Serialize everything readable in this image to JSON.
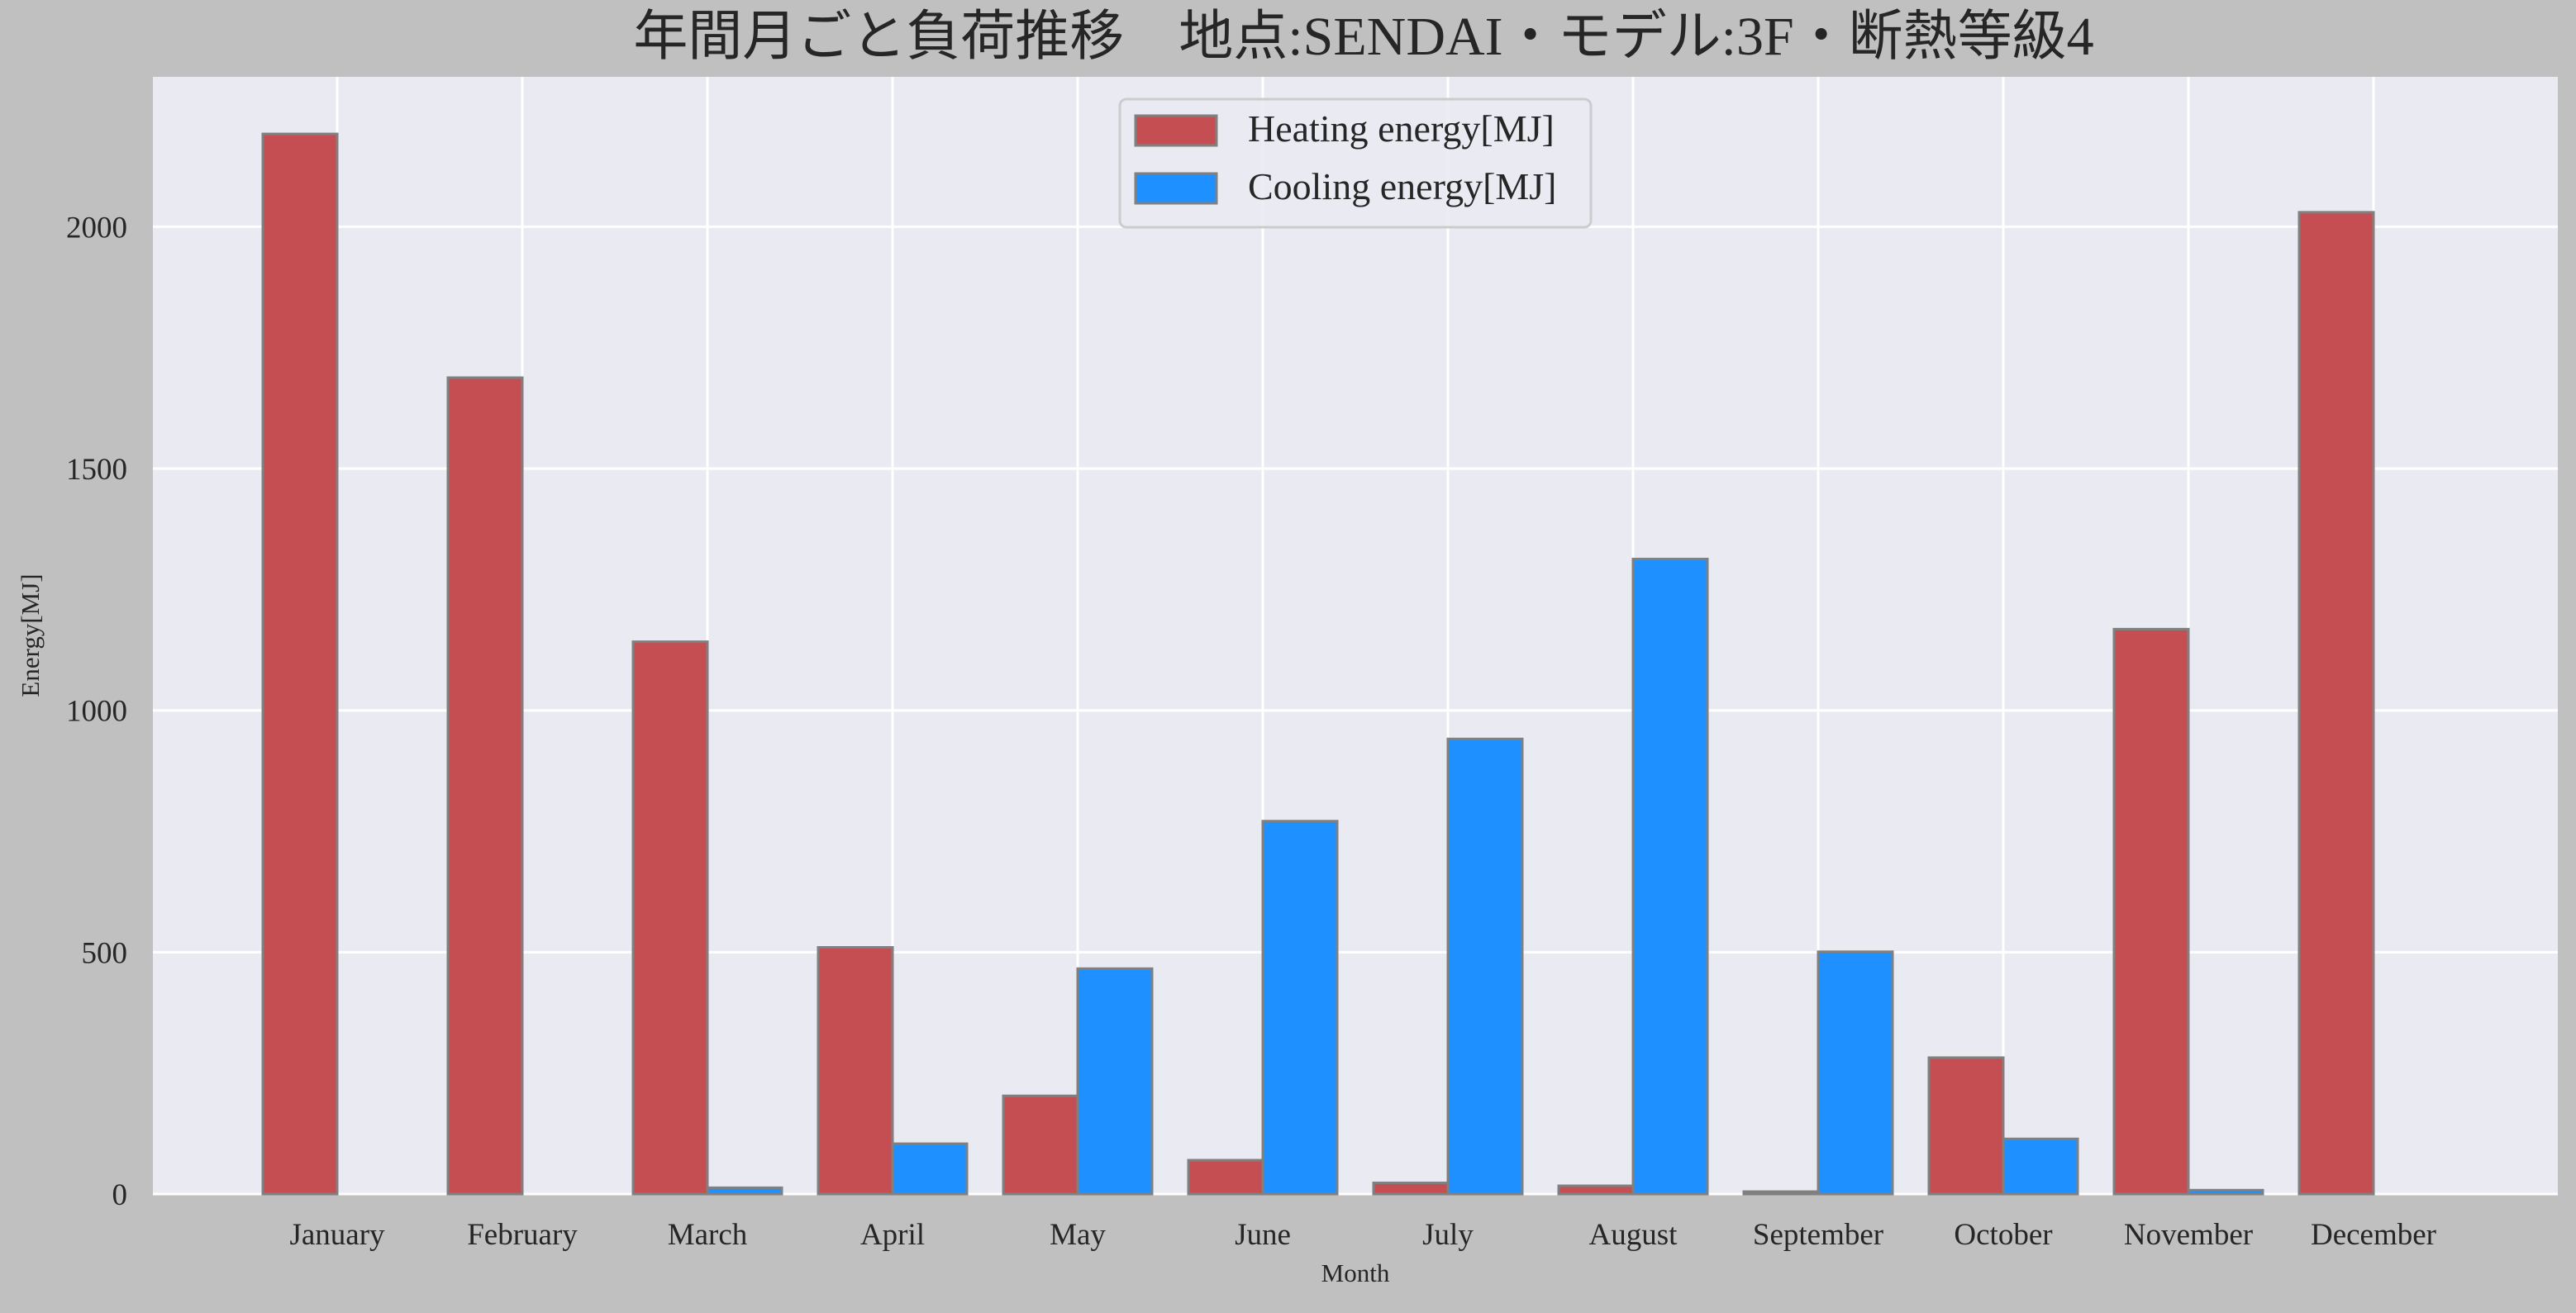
{
  "chart_data": {
    "type": "bar",
    "title": "年間月ごと負荷推移　地点:SENDAI・モデル:3F・断熱等級4",
    "xlabel": "Month",
    "ylabel": "Energy[MJ]",
    "ylim": [
      0,
      2310
    ],
    "yticks": [
      0,
      500,
      1000,
      1500,
      2000
    ],
    "grid": true,
    "legend_position": "top-center",
    "categories": [
      "January",
      "February",
      "March",
      "April",
      "May",
      "June",
      "July",
      "August",
      "September",
      "October",
      "November",
      "December"
    ],
    "series": [
      {
        "name": "Heating energy[MJ]",
        "color": "#c44e52",
        "values": [
          2192,
          1688,
          1142,
          510,
          203,
          70,
          23,
          17,
          5,
          282,
          1168,
          2030
        ]
      },
      {
        "name": "Cooling energy[MJ]",
        "color": "#1e90ff",
        "values": [
          0,
          0,
          13,
          104,
          466,
          771,
          941,
          1313,
          501,
          114,
          8,
          0
        ]
      }
    ]
  },
  "colors": {
    "figure_background": "#c0c0c0",
    "plot_background": "#eaeaf2",
    "grid": "#ffffff",
    "bar_edge": "#808080"
  }
}
